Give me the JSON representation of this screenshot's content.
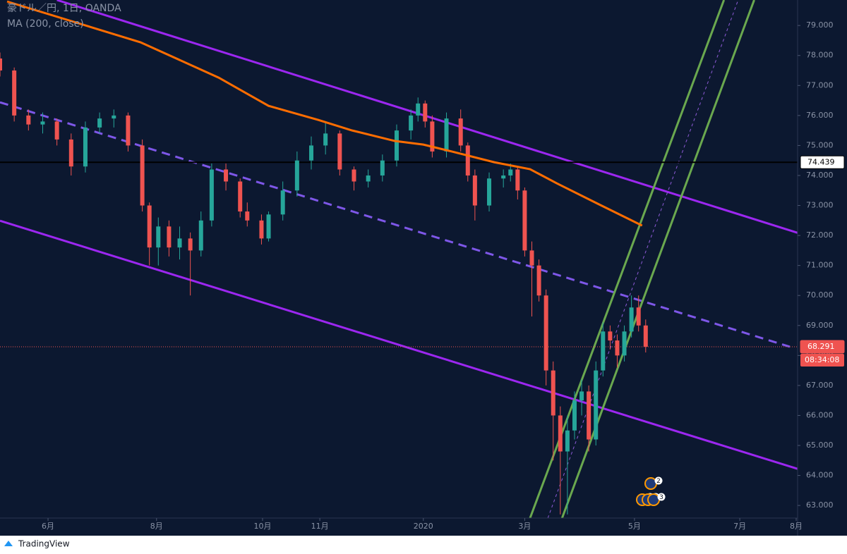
{
  "chart_data": {
    "type": "candlestick",
    "title": "豪ドル／円, 1日, OANDA",
    "subtitle": "MA (200, close)",
    "brand": "TradingView",
    "background": "#0c1830",
    "xlim": [
      0,
      448.4
    ],
    "xticks": [
      {
        "value": 27,
        "label": "6月"
      },
      {
        "value": 88,
        "label": "8月"
      },
      {
        "value": 147.6,
        "label": "10月"
      },
      {
        "value": 179.8,
        "label": "11月"
      },
      {
        "value": 238,
        "label": "2020"
      },
      {
        "value": 295,
        "label": "3月"
      },
      {
        "value": 356.7,
        "label": "5月"
      },
      {
        "value": 415.9,
        "label": "7月"
      },
      {
        "value": 447.6,
        "label": "8月"
      }
    ],
    "ylim": [
      62.58,
      79.85
    ],
    "yticks": [
      {
        "value": 63,
        "label": "63.000"
      },
      {
        "value": 64,
        "label": "64.000"
      },
      {
        "value": 65,
        "label": "65.000"
      },
      {
        "value": 66,
        "label": "66.000"
      },
      {
        "value": 67,
        "label": "67.000"
      },
      {
        "value": 68,
        "label": "68.000"
      },
      {
        "value": 69,
        "label": "69.000"
      },
      {
        "value": 70,
        "label": "70.000"
      },
      {
        "value": 71,
        "label": "71.000"
      },
      {
        "value": 72,
        "label": "72.000"
      },
      {
        "value": 73,
        "label": "73.000"
      },
      {
        "value": 74,
        "label": "74.000"
      },
      {
        "value": 75,
        "label": "75.000"
      },
      {
        "value": 76,
        "label": "76.000"
      },
      {
        "value": 77,
        "label": "77.000"
      },
      {
        "value": 78,
        "label": "78.000"
      },
      {
        "value": 79,
        "label": "79.000"
      }
    ],
    "up_color": "#26a69a",
    "down_color": "#ef5350",
    "candles": {
      "x": [
        0,
        8,
        16,
        24,
        32,
        40,
        48,
        56,
        64,
        72,
        80,
        84,
        89,
        95,
        101,
        107,
        113,
        119,
        127,
        135,
        139,
        147,
        151,
        159,
        167,
        175,
        183,
        191,
        199,
        207,
        215,
        223,
        231,
        235,
        239,
        243,
        251,
        259,
        263,
        267,
        275,
        283,
        287,
        291,
        295,
        299,
        303,
        307,
        311,
        315,
        319,
        323,
        327,
        331,
        335,
        339,
        343,
        347,
        351,
        355,
        359,
        363
      ],
      "open": [
        77.9,
        77.5,
        76.0,
        75.7,
        75.8,
        75.2,
        74.3,
        75.6,
        75.9,
        76.0,
        75.0,
        73.0,
        71.6,
        72.3,
        71.6,
        71.9,
        71.5,
        72.5,
        74.2,
        73.8,
        72.8,
        72.5,
        71.9,
        72.7,
        73.5,
        74.5,
        75.0,
        75.4,
        74.2,
        73.8,
        74.0,
        74.5,
        75.5,
        76.0,
        76.4,
        75.8,
        74.8,
        75.9,
        75.0,
        74.0,
        73.0,
        73.9,
        74.0,
        74.2,
        73.5,
        71.5,
        71.0,
        70.0,
        67.5,
        66.0,
        64.8,
        65.5,
        66.5,
        66.8,
        65.2,
        67.5,
        68.8,
        68.5,
        68.0,
        68.8,
        69.6,
        69.0
      ],
      "high": [
        78.1,
        77.6,
        76.2,
        76.1,
        75.9,
        75.4,
        75.8,
        76.1,
        76.2,
        76.1,
        75.2,
        73.1,
        72.6,
        72.5,
        72.3,
        72.1,
        72.8,
        74.4,
        74.4,
        73.9,
        73.1,
        72.7,
        72.8,
        73.8,
        74.8,
        75.3,
        75.8,
        75.5,
        74.3,
        74.2,
        74.7,
        75.7,
        76.2,
        76.6,
        76.5,
        76.0,
        76.1,
        76.2,
        75.1,
        74.2,
        74.1,
        74.2,
        74.4,
        74.3,
        73.6,
        71.8,
        71.2,
        70.2,
        67.8,
        66.3,
        66.0,
        66.8,
        67.2,
        67.0,
        67.8,
        69.1,
        69.0,
        68.7,
        69.0,
        70.0,
        70.0,
        69.2
      ],
      "low": [
        77.3,
        75.8,
        75.5,
        75.4,
        75.0,
        74.0,
        74.1,
        75.4,
        75.6,
        74.8,
        72.8,
        71.0,
        71.0,
        71.3,
        71.2,
        70.0,
        71.3,
        72.3,
        73.5,
        72.6,
        72.3,
        71.7,
        71.8,
        72.5,
        73.3,
        74.2,
        74.7,
        74.0,
        73.5,
        73.6,
        73.8,
        74.3,
        75.2,
        75.8,
        75.6,
        74.6,
        74.6,
        74.8,
        73.8,
        72.5,
        72.8,
        73.6,
        73.8,
        73.2,
        71.3,
        69.3,
        69.8,
        67.0,
        64.5,
        62.7,
        62.7,
        65.2,
        66.0,
        64.8,
        65.0,
        67.3,
        68.2,
        67.6,
        67.8,
        68.6,
        68.8,
        68.1
      ],
      "close": [
        77.5,
        76.0,
        75.7,
        75.8,
        75.2,
        74.3,
        75.6,
        75.9,
        76.0,
        75.0,
        73.0,
        71.6,
        72.3,
        71.6,
        71.9,
        71.5,
        72.5,
        74.2,
        73.8,
        72.8,
        72.5,
        71.9,
        72.7,
        73.5,
        74.5,
        75.0,
        75.4,
        74.2,
        73.8,
        74.0,
        74.5,
        75.5,
        76.0,
        76.4,
        75.8,
        74.8,
        75.9,
        75.0,
        74.0,
        73.0,
        73.9,
        74.0,
        74.2,
        73.5,
        71.5,
        71.0,
        70.0,
        67.5,
        66.0,
        64.8,
        65.5,
        66.5,
        66.8,
        65.2,
        67.5,
        68.8,
        68.5,
        68.0,
        68.8,
        69.6,
        69.0,
        68.291
      ]
    },
    "ma": {
      "color": "#ff6d00",
      "x": [
        4,
        79,
        123,
        151,
        179,
        198,
        222,
        238,
        254,
        278,
        298,
        313,
        337,
        361
      ],
      "values": [
        79.8,
        78.44,
        77.26,
        76.32,
        75.85,
        75.5,
        75.15,
        75.03,
        74.8,
        74.44,
        74.21,
        73.74,
        73.03,
        72.33
      ]
    },
    "trendlines": [
      {
        "color": "#9c27f0",
        "dashed": false,
        "x": [
          32,
          448.4
        ],
        "values": [
          79.85,
          72.09
        ]
      },
      {
        "color": "#9c27f0",
        "dashed": false,
        "x": [
          0,
          448.4
        ],
        "values": [
          72.49,
          64.22
        ]
      },
      {
        "color": "#7e57e8",
        "dashed": true,
        "x": [
          0,
          444
        ],
        "values": [
          76.44,
          68.29
        ]
      },
      {
        "color": "#6aa84f",
        "dashed": false,
        "x": [
          298,
          407
        ],
        "values": [
          62.58,
          79.85
        ]
      },
      {
        "color": "#6aa84f",
        "dashed": false,
        "x": [
          316,
          424
        ],
        "values": [
          62.58,
          79.85
        ]
      },
      {
        "color": "#8e5bd8",
        "dashed": true,
        "x": [
          308,
          415
        ],
        "values": [
          62.58,
          79.85
        ]
      }
    ],
    "price_lines": [
      {
        "value": 74.439,
        "label": "74.439",
        "color": "#000000",
        "text_color": "#000000",
        "fill": "#ffffff"
      },
      {
        "value": 68.291,
        "label": "68.291",
        "color": "#ef5350",
        "text_color": "#ffffff",
        "fill": "#ef5350"
      }
    ],
    "countdown": "08:34:08",
    "event_badges": [
      "2",
      "3",
      "3",
      "3"
    ]
  }
}
